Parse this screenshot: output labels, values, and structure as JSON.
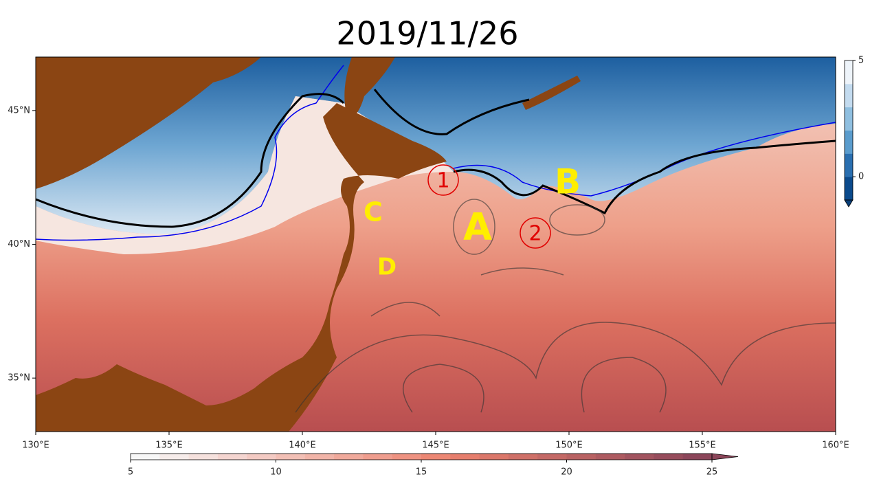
{
  "title": "2019/11/26",
  "map": {
    "xlim": [
      130,
      160
    ],
    "ylim": [
      33,
      47
    ],
    "xticks": [
      {
        "value": 130,
        "label": "130°E"
      },
      {
        "value": 135,
        "label": "135°E"
      },
      {
        "value": 140,
        "label": "140°E"
      },
      {
        "value": 145,
        "label": "145°E"
      },
      {
        "value": 150,
        "label": "150°E"
      },
      {
        "value": 155,
        "label": "155°E"
      },
      {
        "value": 160,
        "label": "160°E"
      }
    ],
    "yticks": [
      {
        "value": 35,
        "label": "35°N"
      },
      {
        "value": 40,
        "label": "40°N"
      },
      {
        "value": 45,
        "label": "45°N"
      }
    ],
    "annotations": [
      "A",
      "B",
      "C",
      "D",
      "1",
      "2"
    ]
  },
  "colorbar_bottom": {
    "lim": [
      5,
      25
    ],
    "ticks": [
      5,
      10,
      15,
      20,
      25
    ]
  },
  "colorbar_right": {
    "lim": [
      -1,
      5
    ],
    "ticks": [
      0,
      5
    ]
  }
}
